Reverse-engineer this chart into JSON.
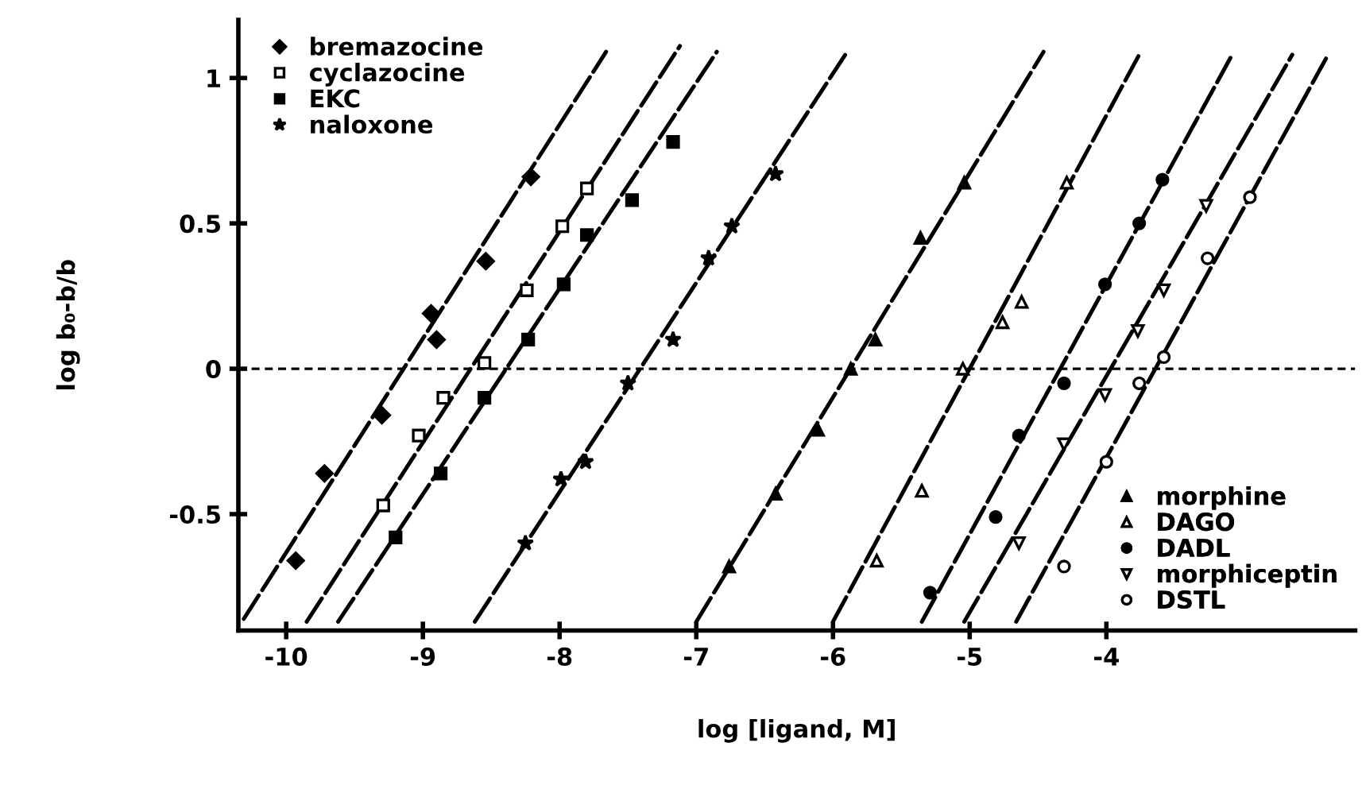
{
  "chart_data": {
    "type": "scatter",
    "xlabel": "log [ligand, M]",
    "ylabel": "log b₀-b/b",
    "xlim": [
      -10.35,
      -2.18
    ],
    "ylim": [
      -0.9,
      1.2
    ],
    "xticks": [
      -10,
      -9,
      -8,
      -7,
      -6,
      -5,
      -4
    ],
    "yticks": [
      -0.5,
      0,
      0.5,
      1
    ],
    "grid": false,
    "legend": [
      "top left",
      "bottom right"
    ],
    "ref_lines": [
      {
        "axis": "y",
        "value": 0,
        "line_style": "dotted",
        "color": "#000000"
      }
    ],
    "series": [
      {
        "name": "bremazocine",
        "color": "#000000",
        "marker": "diamond",
        "x": [
          -9.93,
          -9.72,
          -9.3,
          -8.9,
          -8.94,
          -8.54,
          -8.21
        ],
        "values": [
          -0.66,
          -0.36,
          -0.16,
          0.1,
          0.19,
          0.37,
          0.66
        ]
      },
      {
        "name": "cyclazocine",
        "color": "#000000",
        "marker": "square_open",
        "x": [
          -9.29,
          -9.03,
          -8.85,
          -8.55,
          -8.24,
          -7.98,
          -7.8
        ],
        "values": [
          -0.47,
          -0.23,
          -0.1,
          0.02,
          0.27,
          0.49,
          0.62
        ]
      },
      {
        "name": "EKC",
        "color": "#000000",
        "marker": "square",
        "x": [
          -9.2,
          -8.87,
          -8.55,
          -8.23,
          -7.97,
          -7.8,
          -7.47,
          -7.17
        ],
        "values": [
          -0.58,
          -0.36,
          -0.1,
          0.1,
          0.29,
          0.46,
          0.58,
          0.78
        ]
      },
      {
        "name": "naloxone",
        "color": "#000000",
        "marker": "star",
        "x": [
          -8.25,
          -7.99,
          -7.81,
          -7.5,
          -7.17,
          -6.91,
          -6.74,
          -6.42
        ],
        "values": [
          -0.6,
          -0.38,
          -0.32,
          -0.05,
          0.1,
          0.38,
          0.49,
          0.67
        ]
      },
      {
        "name": "morphine",
        "color": "#000000",
        "marker": "triangle",
        "x": [
          -6.76,
          -6.42,
          -6.11,
          -5.87,
          -5.69,
          -5.36,
          -5.04
        ],
        "values": [
          -0.68,
          -0.43,
          -0.21,
          0.0,
          0.1,
          0.45,
          0.64
        ]
      },
      {
        "name": "DAGO",
        "color": "#000000",
        "marker": "triangle_open",
        "x": [
          -5.68,
          -5.35,
          -5.05,
          -4.76,
          -4.62,
          -4.29
        ],
        "values": [
          -0.66,
          -0.42,
          0.0,
          0.16,
          0.23,
          0.64
        ]
      },
      {
        "name": "DADL",
        "color": "#000000",
        "marker": "circle",
        "x": [
          -5.29,
          -4.81,
          -4.64,
          -4.31,
          -4.01,
          -3.76,
          -3.59
        ],
        "values": [
          -0.77,
          -0.51,
          -0.23,
          -0.05,
          0.29,
          0.5,
          0.65
        ]
      },
      {
        "name": "morphiceptin",
        "color": "#000000",
        "marker": "triangle_down_open",
        "x": [
          -4.64,
          -4.31,
          -4.01,
          -3.77,
          -3.58,
          -3.27
        ],
        "values": [
          -0.6,
          -0.26,
          -0.09,
          0.13,
          0.27,
          0.56
        ]
      },
      {
        "name": "DSTL",
        "color": "#000000",
        "marker": "circle_open",
        "x": [
          -4.31,
          -4.0,
          -3.76,
          -3.58,
          -3.26,
          -2.95
        ],
        "values": [
          -0.68,
          -0.32,
          -0.05,
          0.04,
          0.38,
          0.59
        ]
      },
      {
        "type": "line",
        "line_style": "dashed",
        "color": "#000000",
        "x": [
          -10.31,
          -7.66
        ],
        "values": [
          -0.86,
          1.09
        ]
      },
      {
        "type": "line",
        "line_style": "dashed",
        "color": "#000000",
        "x": [
          -9.85,
          -7.12
        ],
        "values": [
          -0.87,
          1.11
        ]
      },
      {
        "type": "line",
        "line_style": "dashed",
        "color": "#000000",
        "x": [
          -9.62,
          -6.85
        ],
        "values": [
          -0.87,
          1.09
        ]
      },
      {
        "type": "line",
        "line_style": "dashed",
        "color": "#000000",
        "x": [
          -8.62,
          -5.91
        ],
        "values": [
          -0.87,
          1.08
        ]
      },
      {
        "type": "line",
        "line_style": "dashed",
        "color": "#000000",
        "x": [
          -7.0,
          -4.46
        ],
        "values": [
          -0.87,
          1.09
        ]
      },
      {
        "type": "line",
        "line_style": "dashed",
        "color": "#000000",
        "x": [
          -6.0,
          -3.76
        ],
        "values": [
          -0.87,
          1.08
        ]
      },
      {
        "type": "line",
        "line_style": "dashed",
        "color": "#000000",
        "x": [
          -5.35,
          -3.08
        ],
        "values": [
          -0.87,
          1.08
        ]
      },
      {
        "type": "line",
        "line_style": "dashed",
        "color": "#000000",
        "x": [
          -5.04,
          -2.64
        ],
        "values": [
          -0.87,
          1.08
        ]
      },
      {
        "type": "line",
        "line_style": "dashed",
        "color": "#000000",
        "x": [
          -4.66,
          -2.39
        ],
        "values": [
          -0.87,
          1.07
        ]
      }
    ]
  }
}
